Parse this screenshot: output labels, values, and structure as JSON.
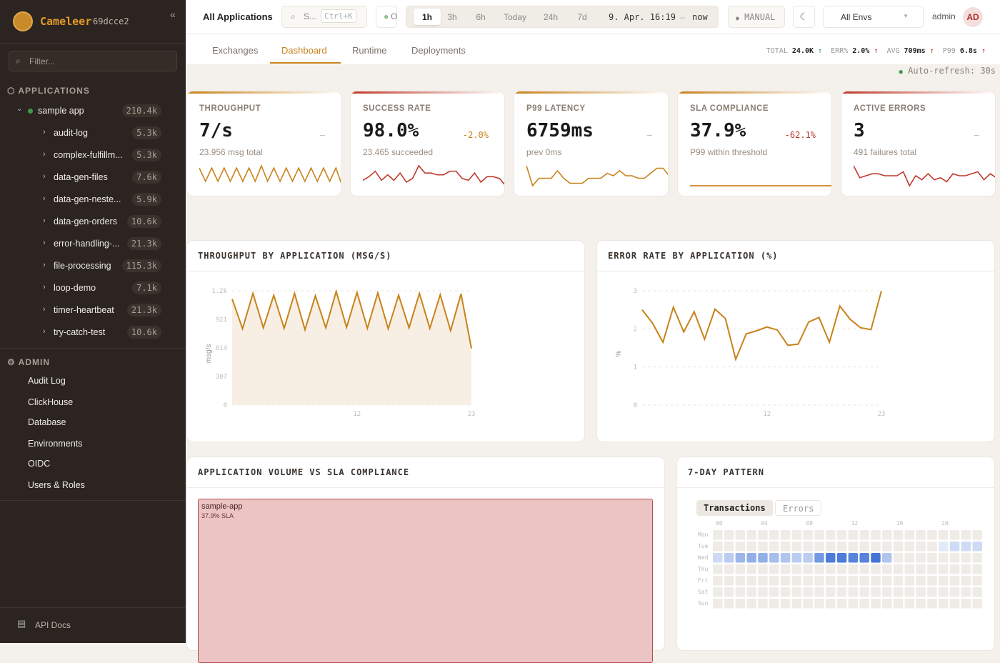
{
  "sidebar": {
    "brand": "Cameleer",
    "version": "69dcce2",
    "filter_placeholder": "Filter...",
    "applications_label": "APPLICATIONS",
    "root_app": {
      "name": "sample app",
      "count": "210.4k"
    },
    "routes": [
      {
        "name": "audit-log",
        "count": "5.3k"
      },
      {
        "name": "complex-fulfillm...",
        "count": "5.3k"
      },
      {
        "name": "data-gen-files",
        "count": "7.6k"
      },
      {
        "name": "data-gen-neste...",
        "count": "5.9k"
      },
      {
        "name": "data-gen-orders",
        "count": "10.6k"
      },
      {
        "name": "error-handling-...",
        "count": "21.3k"
      },
      {
        "name": "file-processing",
        "count": "115.3k"
      },
      {
        "name": "loop-demo",
        "count": "7.1k"
      },
      {
        "name": "timer-heartbeat",
        "count": "21.3k"
      },
      {
        "name": "try-catch-test",
        "count": "10.6k"
      }
    ],
    "admin_label": "ADMIN",
    "admin_items": [
      "Audit Log",
      "ClickHouse",
      "Database",
      "Environments",
      "OIDC",
      "Users & Roles"
    ],
    "api_docs": "API Docs"
  },
  "topbar": {
    "title": "All Applications",
    "search": "S...",
    "search_shortcut": "Ctrl+K",
    "status": "O",
    "ranges": [
      "1h",
      "3h",
      "6h",
      "Today",
      "24h",
      "7d"
    ],
    "active_range": "1h",
    "range_from": "9. Apr. 16:19",
    "range_sep": "–",
    "range_to": "now",
    "manual": "MANUAL",
    "env": "All Envs",
    "user": "admin",
    "avatar": "AD"
  },
  "tabs": [
    "Exchanges",
    "Dashboard",
    "Runtime",
    "Deployments"
  ],
  "active_tab": "Dashboard",
  "summary": {
    "total_label": "TOTAL",
    "total": "24.0K",
    "err_label": "ERR%",
    "err": "2.0%",
    "avg_label": "AVG",
    "avg": "709ms",
    "p99_label": "P99",
    "p99": "6.8s"
  },
  "auto_refresh": "Auto-refresh: 30s",
  "kpis": [
    {
      "label": "THROUGHPUT",
      "value": "7/s",
      "delta": "–",
      "sub": "23.956 msg total",
      "color": "#c8821a",
      "spark": [
        8,
        2,
        8,
        2,
        8,
        2,
        8,
        2,
        8,
        2,
        9,
        2,
        8,
        2,
        8,
        2,
        8,
        2,
        8,
        2,
        8,
        2,
        8,
        0
      ]
    },
    {
      "label": "SUCCESS RATE",
      "value": "98.0%",
      "delta": "-2.0%",
      "sub": "23.465 succeeded",
      "color": "#c0392b",
      "spark": [
        3,
        5,
        8,
        3,
        6,
        3,
        7,
        2,
        4,
        11,
        7,
        7,
        6,
        6,
        8,
        8,
        4,
        3,
        7,
        2,
        5,
        5,
        4,
        0
      ]
    },
    {
      "label": "P99 LATENCY",
      "value": "6759ms",
      "delta": "–",
      "sub": "prev 0ms",
      "color": "#c8821a",
      "spark": [
        8,
        0,
        3,
        3,
        3,
        6,
        3,
        1,
        1,
        1,
        3,
        3,
        3,
        5,
        4,
        6,
        4,
        4,
        3,
        3,
        5,
        7,
        7,
        4
      ]
    },
    {
      "label": "SLA COMPLIANCE",
      "value": "37.9%",
      "delta": "-62.1%",
      "sub": "P99 within threshold",
      "color": "#c8821a",
      "spark": []
    },
    {
      "label": "ACTIVE ERRORS",
      "value": "3",
      "delta": "–",
      "sub": "491 failures total",
      "color": "#c0392b",
      "spark": [
        10,
        4,
        5,
        6,
        6,
        5,
        5,
        5,
        7,
        0,
        5,
        3,
        6,
        3,
        4,
        2,
        6,
        5,
        5,
        6,
        7,
        3,
        6,
        4
      ]
    }
  ],
  "chart_data": [
    {
      "type": "area",
      "title": "THROUGHPUT BY APPLICATION (MSG/S)",
      "ylabel": "msg/s",
      "xlabel": "",
      "ylim": [
        0,
        1228
      ],
      "yticks": [
        "0",
        "307",
        "614",
        "921",
        "1.2k"
      ],
      "xticks": [
        "12",
        "23"
      ],
      "grid": true,
      "x": [
        0,
        1,
        2,
        3,
        4,
        5,
        6,
        7,
        8,
        9,
        10,
        11,
        12,
        13,
        14,
        15,
        16,
        17,
        18,
        19,
        20,
        21,
        22,
        23
      ],
      "values": [
        1140,
        820,
        1200,
        830,
        1180,
        825,
        1200,
        810,
        1175,
        830,
        1220,
        835,
        1210,
        825,
        1205,
        820,
        1180,
        830,
        1200,
        825,
        1185,
        800,
        1195,
        610
      ]
    },
    {
      "type": "line",
      "title": "ERROR RATE BY APPLICATION (%)",
      "ylabel": "%",
      "xlabel": "",
      "ylim": [
        0,
        3
      ],
      "yticks": [
        "0",
        "1",
        "2",
        "3"
      ],
      "xticks": [
        "12",
        "23"
      ],
      "grid": true,
      "x": [
        0,
        1,
        2,
        3,
        4,
        5,
        6,
        7,
        8,
        9,
        10,
        11,
        12,
        13,
        14,
        15,
        16,
        17,
        18,
        19,
        20,
        21,
        22,
        23
      ],
      "values": [
        2.5,
        2.15,
        1.65,
        2.57,
        1.92,
        2.45,
        1.73,
        2.52,
        2.27,
        1.2,
        1.87,
        1.95,
        2.05,
        1.97,
        1.57,
        1.6,
        2.18,
        2.3,
        1.65,
        2.6,
        2.25,
        2.03,
        1.98,
        3.0
      ]
    },
    {
      "type": "treemap",
      "title": "APPLICATION VOLUME VS SLA COMPLIANCE",
      "items": [
        {
          "name": "sample-app",
          "sla": "37.9% SLA"
        }
      ]
    },
    {
      "type": "heatmap",
      "title": "7-DAY PATTERN",
      "toggles": [
        "Transactions",
        "Errors"
      ],
      "active": "Transactions",
      "days": [
        "Mon",
        "Tue",
        "Wed",
        "Thu",
        "Fri",
        "Sat",
        "Sun"
      ],
      "hour_ticks": [
        "00",
        "04",
        "08",
        "12",
        "16",
        "20"
      ],
      "sparse": {
        "Tue": {
          "20": 0.15,
          "21": 0.25,
          "22": 0.25,
          "23": 0.25
        },
        "Wed": {
          "0": 0.25,
          "1": 0.35,
          "2": 0.5,
          "3": 0.55,
          "4": 0.55,
          "5": 0.45,
          "6": 0.4,
          "7": 0.35,
          "8": 0.35,
          "9": 0.7,
          "10": 0.9,
          "11": 0.9,
          "12": 0.85,
          "13": 0.85,
          "14": 0.95,
          "15": 0.4
        }
      }
    }
  ]
}
